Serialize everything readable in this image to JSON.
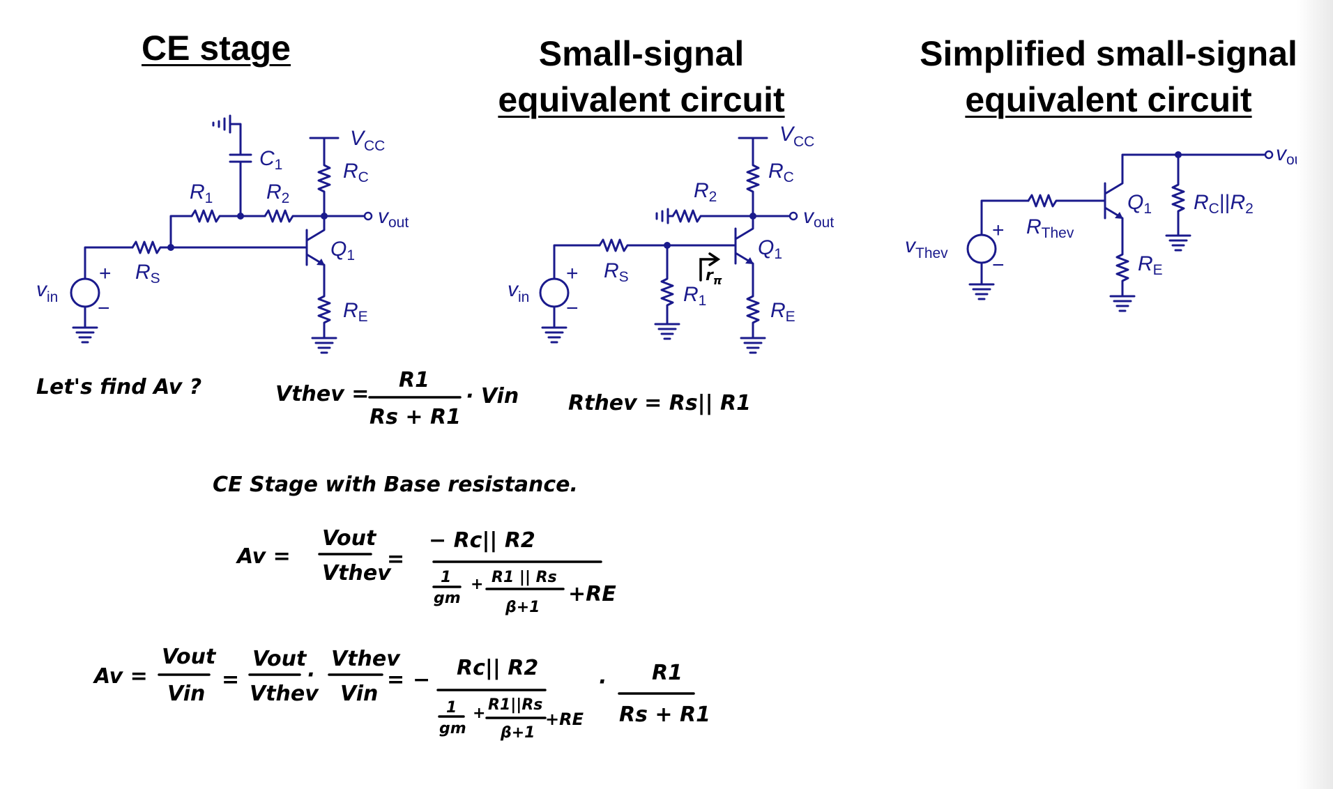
{
  "headings": {
    "ce_stage": "CE stage",
    "small_signal_line1": "Small-signal",
    "small_signal_line2": "equivalent circuit",
    "simplified_line1": "Simplified small-signal",
    "simplified_line2": "equivalent circuit"
  },
  "circuit_labels": {
    "v": "v",
    "in": "in",
    "out": "out",
    "V": "V",
    "cc": "CC",
    "R": "R",
    "C": "C",
    "S": "S",
    "E": "E",
    "Q": "Q",
    "one": "1",
    "two": "2",
    "thev": "Thev",
    "parallel": "||",
    "plus": "+",
    "minus": "−",
    "r": "r",
    "pi": "π"
  },
  "notes": {
    "line1_find": "Let's find Av ?",
    "vthev_lhs": "Vthev =",
    "vthev_num": "R1",
    "vthev_den": "Rs + R1",
    "vthev_tail": "· Vin",
    "rthev": "Rthev = Rs|| R1",
    "heading2": "CE Stage with Base resistance.",
    "av_lhs": "Av =",
    "av_frac_num": "Vout",
    "av_frac_den": "Vthev",
    "equals": "=",
    "neg_rc_r2": "− Rc|| R2",
    "one": "1",
    "gm": "gm",
    "plus": "+",
    "r1_rs": "R1 || Rs",
    "beta_plus_1": "β+1",
    "plus_re": "+RE",
    "av2_lhs": "Av =",
    "vin": "Vin",
    "dot": "·",
    "minus": "−",
    "rc_r2": "Rc|| R2",
    "r1_rs_small": "R1||Rs",
    "r1": "R1",
    "rs_plus_r1": "Rs + R1"
  },
  "colors": {
    "circuit": "#1a1a8c",
    "ink": "#000000"
  }
}
